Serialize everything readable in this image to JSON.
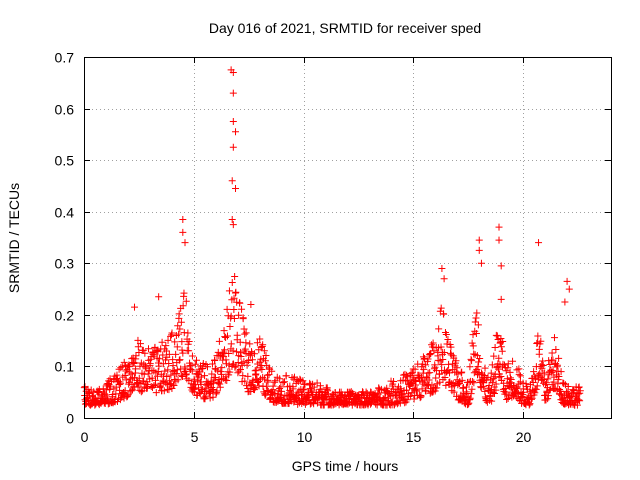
{
  "chart_data": {
    "type": "scatter",
    "title": "Day 016 of 2021, SRMTID for receiver sped",
    "xlabel": "GPS time / hours",
    "ylabel": "SRMTID / TECUs",
    "xlim": [
      0,
      24
    ],
    "ylim": [
      0,
      0.7
    ],
    "x_ticks": [
      0,
      5,
      10,
      15,
      20
    ],
    "x_tick_labels": [
      "0",
      "5",
      "10",
      "15",
      "20"
    ],
    "y_ticks": [
      0,
      0.1,
      0.2,
      0.3,
      0.4,
      0.5,
      0.6,
      0.7
    ],
    "y_tick_labels": [
      "0",
      "0.1",
      "0.2",
      "0.3",
      "0.4",
      "0.5",
      "0.6",
      "0.7"
    ],
    "grid": true,
    "marker": "+",
    "color": "#ff0000",
    "series": [
      {
        "name": "SRMTID",
        "note": "approximate envelope of the dense scatter (hours, TECUs)",
        "x": [
          0.0,
          0.5,
          1.0,
          1.5,
          2.0,
          2.5,
          3.0,
          3.5,
          4.0,
          4.3,
          4.6,
          5.0,
          5.5,
          6.0,
          6.5,
          6.8,
          7.0,
          7.5,
          8.0,
          8.5,
          9.0,
          9.5,
          10.0,
          10.5,
          11.0,
          11.5,
          12.0,
          12.5,
          13.0,
          13.5,
          14.0,
          14.5,
          15.0,
          15.5,
          16.0,
          16.3,
          16.6,
          17.0,
          17.5,
          17.9,
          18.2,
          18.5,
          18.9,
          19.2,
          19.6,
          20.0,
          20.3,
          20.7,
          21.0,
          21.4,
          21.8,
          22.2,
          22.6
        ],
        "y": [
          0.06,
          0.05,
          0.07,
          0.09,
          0.12,
          0.15,
          0.13,
          0.14,
          0.16,
          0.21,
          0.24,
          0.13,
          0.1,
          0.12,
          0.2,
          0.3,
          0.24,
          0.14,
          0.16,
          0.09,
          0.08,
          0.08,
          0.07,
          0.07,
          0.06,
          0.05,
          0.05,
          0.05,
          0.05,
          0.06,
          0.07,
          0.08,
          0.1,
          0.12,
          0.15,
          0.22,
          0.15,
          0.1,
          0.07,
          0.25,
          0.1,
          0.07,
          0.2,
          0.1,
          0.12,
          0.07,
          0.06,
          0.18,
          0.08,
          0.16,
          0.08,
          0.06,
          0.06
        ]
      }
    ],
    "outliers": {
      "x": [
        4.5,
        4.5,
        4.6,
        6.7,
        6.8,
        6.8,
        6.8,
        6.9,
        6.8,
        6.75,
        6.9,
        6.75,
        6.8,
        18.0,
        18.0,
        18.1,
        18.9,
        18.9,
        19.0,
        19.0,
        20.7,
        16.3,
        16.4,
        22.0,
        22.1,
        21.9,
        2.3,
        3.4,
        7.6
      ],
      "y": [
        0.385,
        0.36,
        0.34,
        0.675,
        0.67,
        0.63,
        0.575,
        0.555,
        0.525,
        0.46,
        0.445,
        0.385,
        0.375,
        0.345,
        0.325,
        0.3,
        0.37,
        0.345,
        0.295,
        0.23,
        0.34,
        0.29,
        0.27,
        0.265,
        0.25,
        0.225,
        0.215,
        0.235,
        0.22
      ]
    }
  }
}
